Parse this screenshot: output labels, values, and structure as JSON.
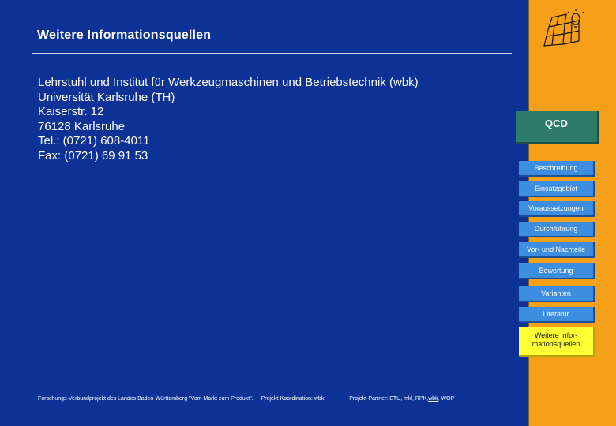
{
  "page": {
    "title": "Weitere Informationsquellen",
    "address_lines": [
      "Lehrstuhl und Institut für Werkzeugmaschinen und Betriebstechnik (wbk)",
      "Universität Karlsruhe (TH)",
      "Kaiserstr. 12",
      "76128 Karlsruhe",
      "Tel.: (0721) 608-4011",
      "Fax: (0721) 69 91 53"
    ]
  },
  "footer": {
    "project": "Forschungs-Verbundprojekt des Landes Baden-Württemberg \"Vom Markt zum Produkt\".",
    "coordination": "Projekt-Koordination:  wbk",
    "partners_prefix": "Projekt-Partner: ETU, mkl, RPK, ",
    "partners_link": "wbk",
    "partners_suffix": ", WOP"
  },
  "sidebar": {
    "section_label": "QCD",
    "nav": [
      {
        "label": "Beschreibung"
      },
      {
        "label": "Einsatzgebiet"
      },
      {
        "label": "Voraussetzungen"
      },
      {
        "label": "Durchführung"
      },
      {
        "label": "Vor- und Nachteile"
      },
      {
        "label": "Bewertung"
      },
      {
        "label": "Varianten"
      },
      {
        "label": "Literatur"
      }
    ],
    "active_line1": "Weitere Infor-",
    "active_line2": "mationsquellen",
    "logo_icon": "grid-lightbulb-logo"
  },
  "colors": {
    "main_bg": "#0c3296",
    "sidebar_bg": "#f6a01a",
    "nav_button": "#3d8ee0",
    "active_button": "#ffff33",
    "qcd_bg": "#2f7b6a"
  }
}
